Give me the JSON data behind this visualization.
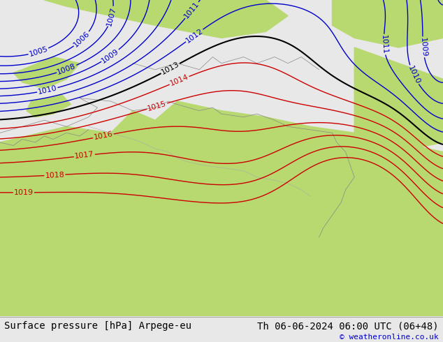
{
  "title_left": "Surface pressure [hPa] Arpege-eu",
  "title_right": "Th 06-06-2024 06:00 UTC (06+48)",
  "credit": "© weatheronline.co.uk",
  "land_color": "#b8d870",
  "sea_color": "#dcdcdc",
  "bottom_bar_color": "#e8e8e8",
  "text_color": "#000000",
  "credit_color": "#0000cc",
  "blue_contour_color": "#0000cc",
  "black_contour_color": "#000000",
  "red_contour_color": "#cc0000",
  "contour_label_fontsize": 8,
  "title_fontsize": 10,
  "credit_fontsize": 8
}
